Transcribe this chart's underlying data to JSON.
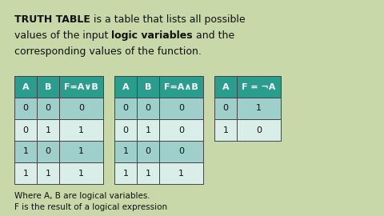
{
  "bg_color": "#c8d8a8",
  "title_parts": [
    [
      "TRUTH TABLE",
      true
    ],
    [
      " is a table that lists all possible",
      false
    ],
    [
      "values of the input ",
      false
    ],
    [
      "logic variables",
      true
    ],
    [
      " and the",
      false
    ],
    [
      "corresponding values of the function.",
      false
    ]
  ],
  "title_lines": [
    [
      [
        "TRUTH TABLE",
        true
      ],
      [
        " is a table that lists all possible",
        false
      ]
    ],
    [
      [
        "values of the input ",
        false
      ],
      [
        "logic variables",
        true
      ],
      [
        " and the",
        false
      ]
    ],
    [
      [
        "corresponding values of the function.",
        false
      ]
    ]
  ],
  "footer_lines": [
    "Where A, B are logical variables.",
    "F is the result of a logical expression"
  ],
  "table1_headers": [
    "A",
    "B",
    "F=A∨B"
  ],
  "table1_data": [
    [
      "0",
      "0",
      "0"
    ],
    [
      "0",
      "1",
      "1"
    ],
    [
      "1",
      "0",
      "1"
    ],
    [
      "1",
      "1",
      "1"
    ]
  ],
  "table2_headers": [
    "A",
    "B",
    "F=A∧B"
  ],
  "table2_data": [
    [
      "0",
      "0",
      "0"
    ],
    [
      "0",
      "1",
      "0"
    ],
    [
      "1",
      "0",
      "0"
    ],
    [
      "1",
      "1",
      "1"
    ]
  ],
  "table3_headers": [
    "A",
    "F = ¬A"
  ],
  "table3_data": [
    [
      "0",
      "1"
    ],
    [
      "1",
      "0"
    ]
  ],
  "header_color": "#2a9d8f",
  "row_color_dark": "#9ecfca",
  "row_color_light": "#daeee9",
  "border_color": "#444444",
  "text_color": "#111111",
  "title_fontsize": 9.0,
  "table_fontsize": 8.0,
  "footer_fontsize": 7.5
}
